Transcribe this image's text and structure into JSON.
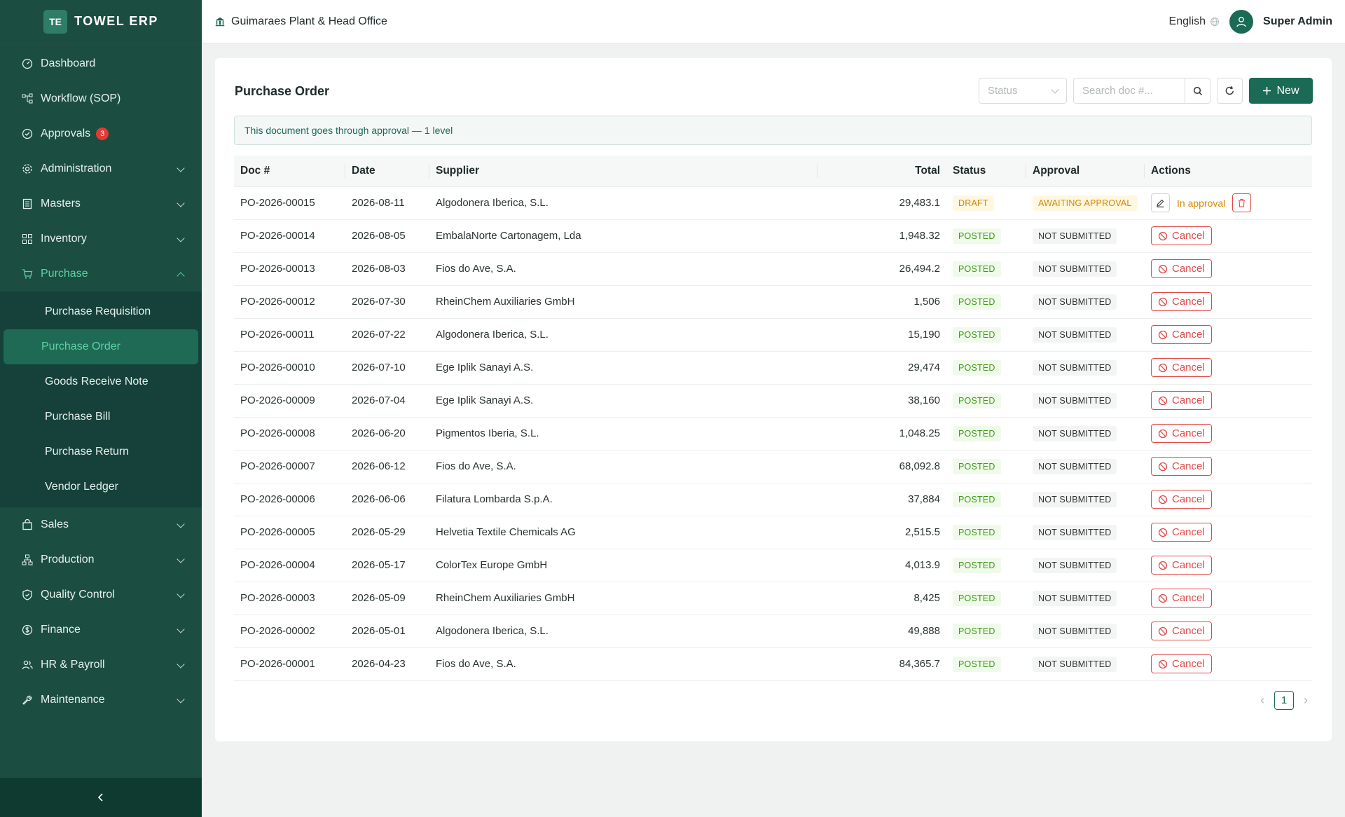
{
  "brand": {
    "logo": "TE",
    "name": "TOWEL ERP"
  },
  "header": {
    "org": "Guimaraes Plant & Head Office",
    "language": "English",
    "user": "Super Admin"
  },
  "sidebar": {
    "items": [
      {
        "label": "Dashboard",
        "icon": "dashboard-icon"
      },
      {
        "label": "Workflow (SOP)",
        "icon": "workflow-icon"
      },
      {
        "label": "Approvals",
        "icon": "approvals-icon",
        "badge": "3"
      },
      {
        "label": "Administration",
        "icon": "gear-icon"
      },
      {
        "label": "Masters",
        "icon": "masters-icon"
      },
      {
        "label": "Inventory",
        "icon": "grid-icon"
      },
      {
        "label": "Purchase",
        "icon": "cart-icon"
      },
      {
        "label": "Sales",
        "icon": "bag-icon"
      },
      {
        "label": "Production",
        "icon": "production-icon"
      },
      {
        "label": "Quality Control",
        "icon": "shield-icon"
      },
      {
        "label": "Finance",
        "icon": "dollar-icon"
      },
      {
        "label": "HR & Payroll",
        "icon": "people-icon"
      },
      {
        "label": "Maintenance",
        "icon": "wrench-icon"
      }
    ],
    "purchase_sub": [
      "Purchase Requisition",
      "Purchase Order",
      "Goods Receive Note",
      "Purchase Bill",
      "Purchase Return",
      "Vendor Ledger"
    ]
  },
  "page": {
    "title": "Purchase Order",
    "status_placeholder": "Status",
    "search_placeholder": "Search doc #...",
    "new_label": "New",
    "alert": "This document goes through approval — 1 level",
    "columns": [
      "Doc #",
      "Date",
      "Supplier",
      "Total",
      "Status",
      "Approval",
      "Actions"
    ],
    "in_approval": "In approval",
    "cancel_label": "Cancel",
    "page": "1"
  },
  "rows": [
    {
      "doc": "PO-2026-00015",
      "date": "2026-08-11",
      "supplier": "Algodonera Iberica, S.L.",
      "total": "29,483.1",
      "status": "DRAFT",
      "approval": "AWAITING APPROVAL"
    },
    {
      "doc": "PO-2026-00014",
      "date": "2026-08-05",
      "supplier": "EmbalaNorte Cartonagem, Lda",
      "total": "1,948.32",
      "status": "POSTED",
      "approval": "NOT SUBMITTED"
    },
    {
      "doc": "PO-2026-00013",
      "date": "2026-08-03",
      "supplier": "Fios do Ave, S.A.",
      "total": "26,494.2",
      "status": "POSTED",
      "approval": "NOT SUBMITTED"
    },
    {
      "doc": "PO-2026-00012",
      "date": "2026-07-30",
      "supplier": "RheinChem Auxiliaries GmbH",
      "total": "1,506",
      "status": "POSTED",
      "approval": "NOT SUBMITTED"
    },
    {
      "doc": "PO-2026-00011",
      "date": "2026-07-22",
      "supplier": "Algodonera Iberica, S.L.",
      "total": "15,190",
      "status": "POSTED",
      "approval": "NOT SUBMITTED"
    },
    {
      "doc": "PO-2026-00010",
      "date": "2026-07-10",
      "supplier": "Ege Iplik Sanayi A.S.",
      "total": "29,474",
      "status": "POSTED",
      "approval": "NOT SUBMITTED"
    },
    {
      "doc": "PO-2026-00009",
      "date": "2026-07-04",
      "supplier": "Ege Iplik Sanayi A.S.",
      "total": "38,160",
      "status": "POSTED",
      "approval": "NOT SUBMITTED"
    },
    {
      "doc": "PO-2026-00008",
      "date": "2026-06-20",
      "supplier": "Pigmentos Iberia, S.L.",
      "total": "1,048.25",
      "status": "POSTED",
      "approval": "NOT SUBMITTED"
    },
    {
      "doc": "PO-2026-00007",
      "date": "2026-06-12",
      "supplier": "Fios do Ave, S.A.",
      "total": "68,092.8",
      "status": "POSTED",
      "approval": "NOT SUBMITTED"
    },
    {
      "doc": "PO-2026-00006",
      "date": "2026-06-06",
      "supplier": "Filatura Lombarda S.p.A.",
      "total": "37,884",
      "status": "POSTED",
      "approval": "NOT SUBMITTED"
    },
    {
      "doc": "PO-2026-00005",
      "date": "2026-05-29",
      "supplier": "Helvetia Textile Chemicals AG",
      "total": "2,515.5",
      "status": "POSTED",
      "approval": "NOT SUBMITTED"
    },
    {
      "doc": "PO-2026-00004",
      "date": "2026-05-17",
      "supplier": "ColorTex Europe GmbH",
      "total": "4,013.9",
      "status": "POSTED",
      "approval": "NOT SUBMITTED"
    },
    {
      "doc": "PO-2026-00003",
      "date": "2026-05-09",
      "supplier": "RheinChem Auxiliaries GmbH",
      "total": "8,425",
      "status": "POSTED",
      "approval": "NOT SUBMITTED"
    },
    {
      "doc": "PO-2026-00002",
      "date": "2026-05-01",
      "supplier": "Algodonera Iberica, S.L.",
      "total": "49,888",
      "status": "POSTED",
      "approval": "NOT SUBMITTED"
    },
    {
      "doc": "PO-2026-00001",
      "date": "2026-04-23",
      "supplier": "Fios do Ave, S.A.",
      "total": "84,365.7",
      "status": "POSTED",
      "approval": "NOT SUBMITTED"
    }
  ],
  "colors": {
    "sidebar": "#1b4d40",
    "accent": "#1b6a55",
    "active_text": "#5fd1a4",
    "danger": "#e24949",
    "warning": "#d48806",
    "success": "#3f9a1a"
  }
}
